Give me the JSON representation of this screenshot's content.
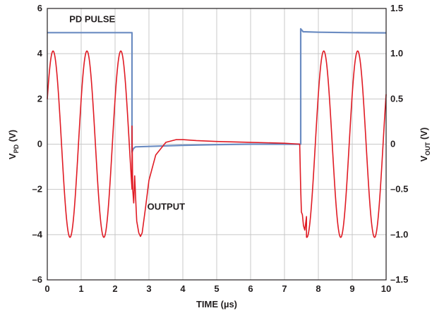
{
  "chart_data": {
    "type": "line",
    "title": "",
    "xlabel": "TIME (µs)",
    "ylabel_left": {
      "main": "V",
      "sub": "PD",
      "unit": " (V)"
    },
    "ylabel_right": {
      "main": "V",
      "sub": "OUT",
      "unit": " (V)"
    },
    "xlim": [
      0,
      10
    ],
    "ylim_left": [
      -6,
      6
    ],
    "ylim_right": [
      -1.5,
      1.5
    ],
    "x_ticks": [
      "0",
      "1",
      "2",
      "3",
      "4",
      "5",
      "6",
      "7",
      "8",
      "9",
      "10"
    ],
    "y_ticks_left": [
      "6",
      "4",
      "2",
      "0",
      "–2",
      "–4",
      "–6"
    ],
    "y_ticks_right": [
      "1.5",
      "1.0",
      "0.5",
      "0",
      "–0.5",
      "–1.0",
      "–1.5"
    ],
    "grid": true,
    "annotations": [
      {
        "text": "PD PULSE",
        "x": 0.65,
        "y_left": 5.4
      },
      {
        "text": "OUTPUT",
        "x": 2.95,
        "y_left": -2.9
      }
    ],
    "series": [
      {
        "name": "PD PULSE",
        "axis": "left",
        "color": "#6b8cc2",
        "points": [
          [
            0,
            4.93
          ],
          [
            1,
            4.93
          ],
          [
            2,
            4.93
          ],
          [
            2.5,
            4.93
          ],
          [
            2.5,
            -0.35
          ],
          [
            2.54,
            -0.2
          ],
          [
            2.6,
            -0.12
          ],
          [
            3,
            -0.1
          ],
          [
            4,
            -0.05
          ],
          [
            5,
            -0.02
          ],
          [
            6,
            0.0
          ],
          [
            7,
            0.0
          ],
          [
            7.48,
            0.0
          ],
          [
            7.48,
            5.1
          ],
          [
            7.55,
            4.97
          ],
          [
            8,
            4.95
          ],
          [
            9,
            4.93
          ],
          [
            10,
            4.92
          ]
        ]
      },
      {
        "name": "OUTPUT",
        "axis": "right",
        "color": "#e01b24",
        "segments": [
          {
            "type": "sine",
            "x0": 0,
            "x1": 2.5,
            "amp": 1.03,
            "freq": 1.0,
            "phase_x": 0.17
          },
          {
            "type": "points",
            "points": [
              [
                2.5,
                0.2
              ],
              [
                2.52,
                -0.5
              ],
              [
                2.55,
                -0.65
              ],
              [
                2.58,
                -0.35
              ],
              [
                2.61,
                -0.62
              ],
              [
                2.64,
                -0.85
              ],
              [
                2.7,
                -0.98
              ],
              [
                2.75,
                -1.02
              ],
              [
                2.8,
                -0.98
              ],
              [
                2.9,
                -0.7
              ],
              [
                3.0,
                -0.4
              ],
              [
                3.2,
                -0.12
              ],
              [
                3.5,
                0.02
              ],
              [
                3.8,
                0.05
              ],
              [
                4.0,
                0.05
              ],
              [
                4.4,
                0.04
              ],
              [
                5.0,
                0.03
              ],
              [
                6.0,
                0.02
              ],
              [
                7.0,
                0.01
              ],
              [
                7.45,
                0.0
              ],
              [
                7.48,
                -0.5
              ],
              [
                7.5,
                -0.75
              ],
              [
                7.53,
                -0.78
              ],
              [
                7.56,
                -0.9
              ],
              [
                7.6,
                -0.95
              ],
              [
                7.65,
                -0.8
              ]
            ]
          },
          {
            "type": "sine",
            "x0": 7.65,
            "x1": 10,
            "amp": 1.03,
            "freq": 1.0,
            "phase_x": 8.16
          }
        ]
      }
    ]
  }
}
